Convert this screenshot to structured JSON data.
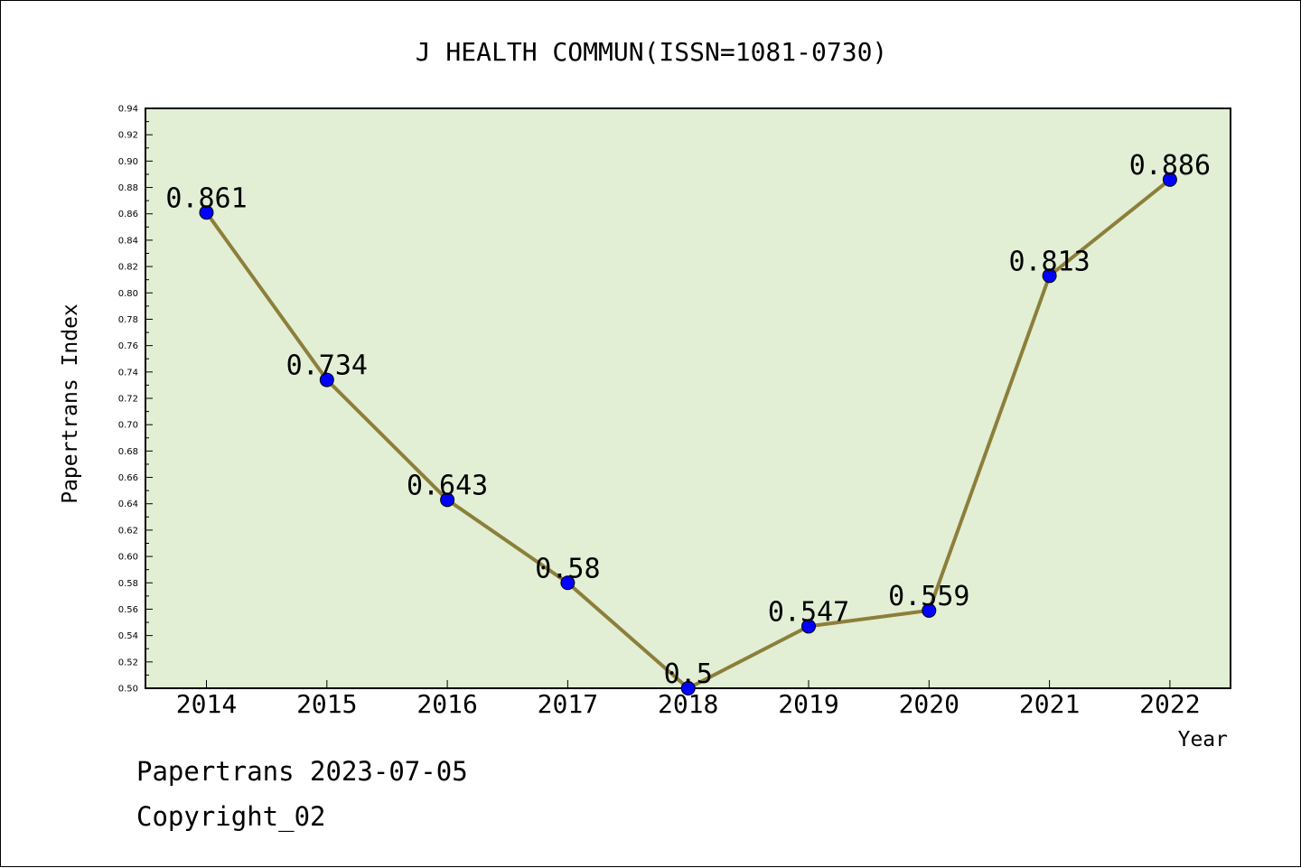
{
  "chart_data": {
    "type": "line",
    "title": "J HEALTH COMMUN(ISSN=1081-0730)",
    "xlabel": "Year",
    "ylabel": "Papertrans Index",
    "categories": [
      "2014",
      "2015",
      "2016",
      "2017",
      "2018",
      "2019",
      "2020",
      "2021",
      "2022"
    ],
    "series": [
      {
        "values": [
          0.861,
          0.734,
          0.643,
          0.58,
          0.5,
          0.547,
          0.559,
          0.813,
          0.886
        ]
      }
    ],
    "data_labels": [
      "0.861",
      "0.734",
      "0.643",
      "0.58",
      "0.5",
      "0.547",
      "0.559",
      "0.813",
      "0.886"
    ],
    "ylim": [
      0.5,
      0.94
    ],
    "y_ticks": [
      "0.50",
      "0.52",
      "0.54",
      "0.56",
      "0.58",
      "0.60",
      "0.62",
      "0.64",
      "0.66",
      "0.68",
      "0.70",
      "0.72",
      "0.74",
      "0.76",
      "0.78",
      "0.80",
      "0.82",
      "0.84",
      "0.86",
      "0.88",
      "0.90",
      "0.92",
      "0.94"
    ],
    "grid": false,
    "colors": {
      "plot_background": "#e2efd5",
      "line": "#8c7f3a",
      "marker": "#0000ff"
    }
  },
  "footer": {
    "line1": "Papertrans 2023-07-05",
    "line2": "Copyright_02"
  }
}
